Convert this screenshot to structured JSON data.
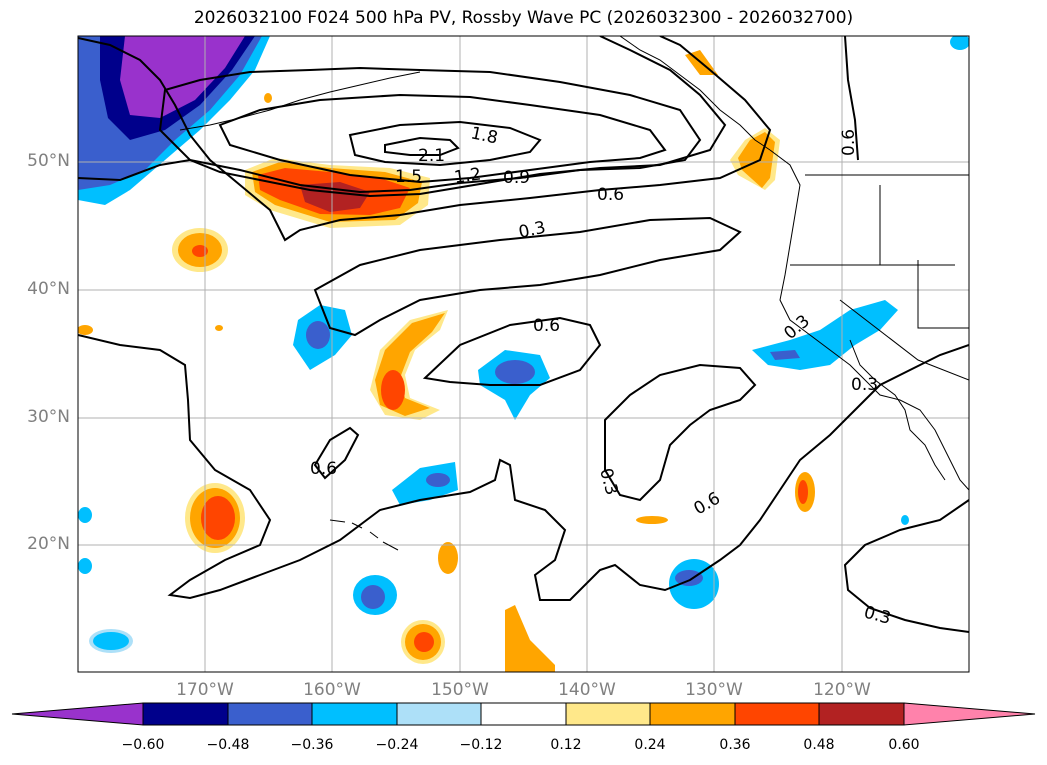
{
  "title": "2026032100 F024 500 hPa PV, Rossby Wave PC (2026032300 - 2026032700)",
  "lat_labels": [
    "50°N",
    "40°N",
    "30°N",
    "20°N"
  ],
  "lon_labels": [
    "170°W",
    "160°W",
    "150°W",
    "140°W",
    "130°W",
    "120°W"
  ],
  "colorbar": {
    "tick_labels": [
      "−0.60",
      "−0.48",
      "−0.36",
      "−0.24",
      "−0.12",
      "0.12",
      "0.24",
      "0.36",
      "0.48",
      "0.60"
    ],
    "colors": [
      "#9932CC",
      "#00008B",
      "#3A5FCD",
      "#00BFFF",
      "#ADE0F8",
      "#FFFFFF",
      "#FFE88A",
      "#FFA500",
      "#FF4500",
      "#B22222",
      "#FF82AB"
    ]
  },
  "contour_labels": [
    "2.1",
    "1.8",
    "1.5",
    "1.2",
    "0.9",
    "0.6",
    "0.3",
    "0.6",
    "0.6",
    "0.3",
    "0.6",
    "0.3",
    "0.3",
    "0.6",
    "0.3"
  ]
}
